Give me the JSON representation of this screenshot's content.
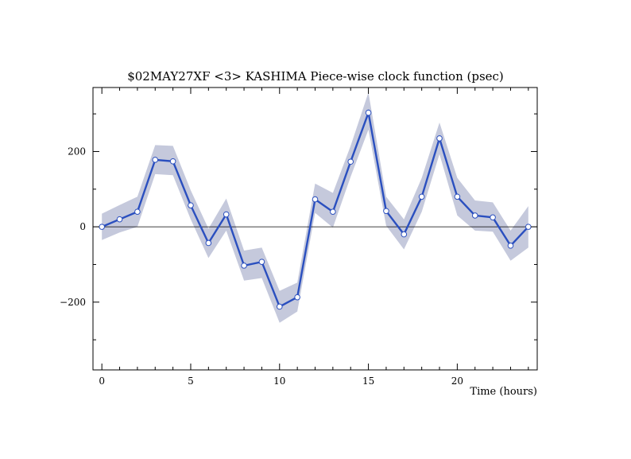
{
  "chart_data": {
    "type": "line",
    "title": "$02MAY27XF <3>  KASHIMA   Piece-wise clock function (psec)",
    "xlabel": "Time (hours)",
    "ylabel": "",
    "xlim": [
      -0.5,
      24.5
    ],
    "ylim": [
      -380,
      370
    ],
    "xticks_major": [
      0,
      5,
      10,
      15,
      20
    ],
    "xtick_labels": [
      "0",
      "5",
      "10",
      "15",
      "20"
    ],
    "yticks_major": [
      -200,
      0,
      200
    ],
    "ytick_labels": [
      "−200",
      "0",
      "200"
    ],
    "yticks_minor": [
      -300,
      -100,
      100,
      300
    ],
    "grid": false,
    "legend": "none",
    "colors": {
      "line": "#2a4fbf",
      "band": "#c5c9dc",
      "marker_fill": "#ffffff",
      "marker_edge": "#2a4fbf"
    },
    "series": [
      {
        "x": [
          0,
          1,
          2,
          3,
          4,
          5,
          6,
          7,
          8,
          9,
          10,
          11,
          12,
          13,
          14,
          15,
          16,
          17,
          18,
          19,
          20,
          21,
          22,
          23,
          24
        ],
        "values": [
          0,
          20,
          40,
          178,
          174,
          57,
          -43,
          33,
          -103,
          -93,
          -212,
          -187,
          73,
          40,
          173,
          303,
          42,
          -20,
          80,
          235,
          80,
          30,
          25,
          -50,
          0
        ],
        "lower": [
          -35,
          -15,
          0,
          140,
          137,
          20,
          -83,
          -10,
          -143,
          -136,
          -255,
          -225,
          37,
          -2,
          133,
          258,
          3,
          -60,
          40,
          193,
          30,
          -10,
          -13,
          -90,
          -55
        ],
        "upper": [
          35,
          58,
          80,
          217,
          215,
          97,
          -5,
          75,
          -63,
          -55,
          -170,
          -148,
          115,
          90,
          215,
          357,
          80,
          20,
          130,
          277,
          130,
          70,
          65,
          -10,
          55
        ]
      }
    ]
  }
}
